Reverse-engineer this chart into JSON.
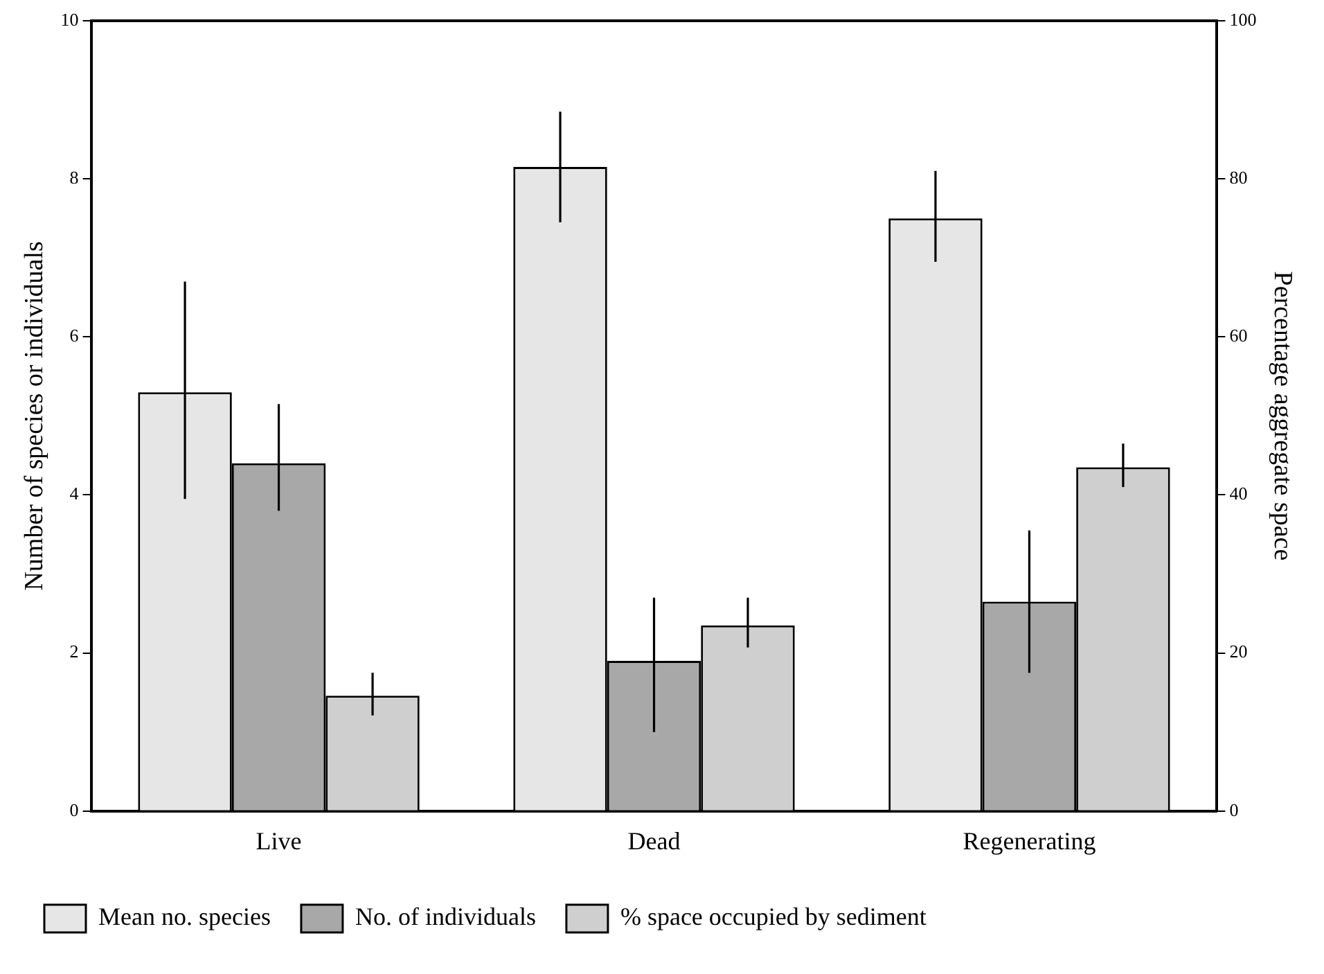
{
  "chart_data": {
    "type": "bar",
    "categories": [
      "Live",
      "Dead",
      "Regenerating"
    ],
    "ylabel": "Number of species or individuals",
    "y2label": "Percentage aggregate space",
    "ylim": [
      0,
      10
    ],
    "yticks": [
      0,
      2,
      4,
      6,
      8,
      10
    ],
    "y2lim": [
      0,
      100
    ],
    "y2ticks": [
      0,
      20,
      40,
      60,
      80,
      100
    ],
    "grid": false,
    "legend": "bottom",
    "series": [
      {
        "name": "Mean no. species",
        "color": "#e6e6e6",
        "values": [
          5.3,
          8.15,
          7.5
        ],
        "errors": [
          [
            3.95,
            6.7
          ],
          [
            7.45,
            8.85
          ],
          [
            6.95,
            8.1
          ]
        ]
      },
      {
        "name": "No. of individuals",
        "color": "#a8a8a8",
        "values": [
          4.4,
          1.9,
          2.65
        ],
        "errors": [
          [
            3.8,
            5.15
          ],
          [
            1.0,
            2.7
          ],
          [
            1.75,
            3.55
          ]
        ]
      },
      {
        "name": "% space occupied by sediment",
        "color": "#cfcfcf",
        "axis": "y2",
        "values": [
          14.6,
          23.5,
          43.5
        ],
        "errors": [
          [
            12.1,
            17.5
          ],
          [
            20.7,
            27
          ],
          [
            41,
            46.5
          ]
        ]
      }
    ]
  }
}
